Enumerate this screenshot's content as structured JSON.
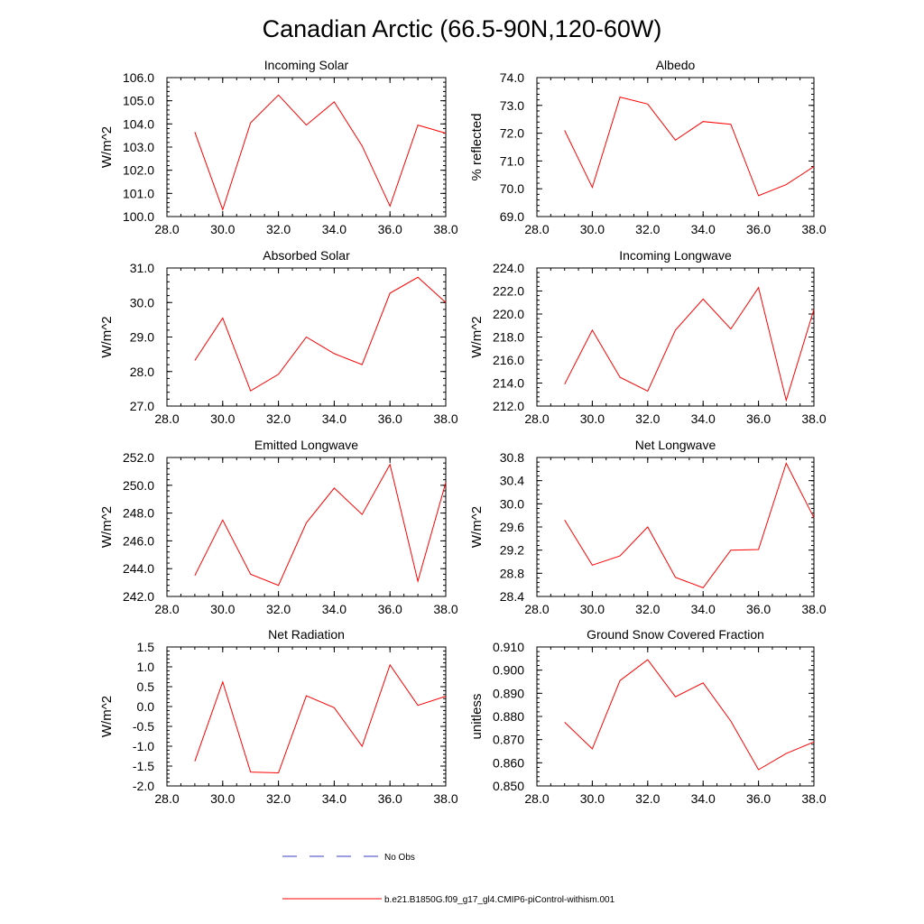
{
  "figure_title": "Canadian Arctic (66.5-90N,120-60W)",
  "legend": {
    "entries": [
      {
        "label": "No Obs",
        "color": "#3b3bc8",
        "dash": "dashed"
      },
      {
        "label": "b.e21.B1850G.f09_g17_gl4.CMIP6-piControl-withism.001",
        "color": "#ff0000",
        "dash": "solid"
      }
    ]
  },
  "chart_data": [
    {
      "type": "line",
      "title": "Incoming Solar",
      "xlabel": "",
      "ylabel": "W/m^2",
      "xlim": [
        28,
        38
      ],
      "ylim": [
        100,
        106
      ],
      "xticks": [
        28,
        30,
        32,
        34,
        36,
        38
      ],
      "xtick_labels": [
        "28.0",
        "30.0",
        "32.0",
        "34.0",
        "36.0",
        "38.0"
      ],
      "yticks": [
        100,
        101,
        102,
        103,
        104,
        105,
        106
      ],
      "ytick_labels": [
        "100.0",
        "101.0",
        "102.0",
        "103.0",
        "104.0",
        "105.0",
        "106.0"
      ],
      "series": [
        {
          "name": "b.e21.B1850G.f09_g17_gl4.CMIP6-piControl-withism.001",
          "color": "#ff0000",
          "x": [
            29,
            30,
            31,
            32,
            33,
            34,
            35,
            36,
            37,
            38
          ],
          "y": [
            103.65,
            100.3,
            104.05,
            105.25,
            103.95,
            104.95,
            103.05,
            100.45,
            103.95,
            103.6
          ]
        }
      ]
    },
    {
      "type": "line",
      "title": "Albedo",
      "xlabel": "",
      "ylabel": "% reflected",
      "xlim": [
        28,
        38
      ],
      "ylim": [
        69,
        74
      ],
      "xticks": [
        28,
        30,
        32,
        34,
        36,
        38
      ],
      "xtick_labels": [
        "28.0",
        "30.0",
        "32.0",
        "34.0",
        "36.0",
        "38.0"
      ],
      "yticks": [
        69,
        70,
        71,
        72,
        73,
        74
      ],
      "ytick_labels": [
        "69.0",
        "70.0",
        "71.0",
        "72.0",
        "73.0",
        "74.0"
      ],
      "series": [
        {
          "name": "b.e21.B1850G.f09_g17_gl4.CMIP6-piControl-withism.001",
          "color": "#ff0000",
          "x": [
            29,
            30,
            31,
            32,
            33,
            34,
            35,
            36,
            37,
            38
          ],
          "y": [
            72.1,
            70.05,
            73.3,
            73.05,
            71.75,
            72.42,
            72.32,
            69.75,
            70.15,
            70.8
          ]
        }
      ]
    },
    {
      "type": "line",
      "title": "Absorbed Solar",
      "xlabel": "",
      "ylabel": "W/m^2",
      "xlim": [
        28,
        38
      ],
      "ylim": [
        27,
        31
      ],
      "xticks": [
        28,
        30,
        32,
        34,
        36,
        38
      ],
      "xtick_labels": [
        "28.0",
        "30.0",
        "32.0",
        "34.0",
        "36.0",
        "38.0"
      ],
      "yticks": [
        27,
        28,
        29,
        30,
        31
      ],
      "ytick_labels": [
        "27.0",
        "28.0",
        "29.0",
        "30.0",
        "31.0"
      ],
      "series": [
        {
          "name": "b.e21.B1850G.f09_g17_gl4.CMIP6-piControl-withism.001",
          "color": "#ff0000",
          "x": [
            29,
            30,
            31,
            32,
            33,
            34,
            35,
            36,
            37,
            38
          ],
          "y": [
            28.32,
            29.55,
            27.44,
            27.92,
            29.0,
            28.52,
            28.2,
            30.27,
            30.73,
            30.0
          ]
        }
      ]
    },
    {
      "type": "line",
      "title": "Incoming Longwave",
      "xlabel": "",
      "ylabel": "W/m^2",
      "xlim": [
        28,
        38
      ],
      "ylim": [
        212,
        224
      ],
      "xticks": [
        28,
        30,
        32,
        34,
        36,
        38
      ],
      "xtick_labels": [
        "28.0",
        "30.0",
        "32.0",
        "34.0",
        "36.0",
        "38.0"
      ],
      "yticks": [
        212,
        214,
        216,
        218,
        220,
        222,
        224
      ],
      "ytick_labels": [
        "212.0",
        "214.0",
        "216.0",
        "218.0",
        "220.0",
        "222.0",
        "224.0"
      ],
      "series": [
        {
          "name": "b.e21.B1850G.f09_g17_gl4.CMIP6-piControl-withism.001",
          "color": "#ff0000",
          "x": [
            29,
            30,
            31,
            32,
            33,
            34,
            35,
            36,
            37,
            38
          ],
          "y": [
            213.9,
            218.6,
            214.5,
            213.3,
            218.6,
            221.3,
            218.7,
            222.3,
            212.5,
            220.4
          ]
        }
      ]
    },
    {
      "type": "line",
      "title": "Emitted Longwave",
      "xlabel": "",
      "ylabel": "W/m^2",
      "xlim": [
        28,
        38
      ],
      "ylim": [
        242,
        252
      ],
      "xticks": [
        28,
        30,
        32,
        34,
        36,
        38
      ],
      "xtick_labels": [
        "28.0",
        "30.0",
        "32.0",
        "34.0",
        "36.0",
        "38.0"
      ],
      "yticks": [
        242,
        244,
        246,
        248,
        250,
        252
      ],
      "ytick_labels": [
        "242.0",
        "244.0",
        "246.0",
        "248.0",
        "250.0",
        "252.0"
      ],
      "series": [
        {
          "name": "b.e21.B1850G.f09_g17_gl4.CMIP6-piControl-withism.001",
          "color": "#ff0000",
          "x": [
            29,
            30,
            31,
            32,
            33,
            34,
            35,
            36,
            37,
            38
          ],
          "y": [
            243.5,
            247.5,
            243.6,
            242.8,
            247.3,
            249.8,
            247.9,
            251.5,
            243.1,
            250.2
          ]
        }
      ]
    },
    {
      "type": "line",
      "title": "Net Longwave",
      "xlabel": "",
      "ylabel": "W/m^2",
      "xlim": [
        28,
        38
      ],
      "ylim": [
        28.4,
        30.8
      ],
      "xticks": [
        28,
        30,
        32,
        34,
        36,
        38
      ],
      "xtick_labels": [
        "28.0",
        "30.0",
        "32.0",
        "34.0",
        "36.0",
        "38.0"
      ],
      "yticks": [
        28.4,
        28.8,
        29.2,
        29.6,
        30.0,
        30.4,
        30.8
      ],
      "ytick_labels": [
        "28.4",
        "28.8",
        "29.2",
        "29.6",
        "30.0",
        "30.4",
        "30.8"
      ],
      "series": [
        {
          "name": "b.e21.B1850G.f09_g17_gl4.CMIP6-piControl-withism.001",
          "color": "#ff0000",
          "x": [
            29,
            30,
            31,
            32,
            33,
            34,
            35,
            36,
            37,
            38
          ],
          "y": [
            29.72,
            28.94,
            29.1,
            29.6,
            28.73,
            28.55,
            29.2,
            29.21,
            30.7,
            29.76
          ]
        }
      ]
    },
    {
      "type": "line",
      "title": "Net Radiation",
      "xlabel": "",
      "ylabel": "W/m^2",
      "xlim": [
        28,
        38
      ],
      "ylim": [
        -2.0,
        1.5
      ],
      "xticks": [
        28,
        30,
        32,
        34,
        36,
        38
      ],
      "xtick_labels": [
        "28.0",
        "30.0",
        "32.0",
        "34.0",
        "36.0",
        "38.0"
      ],
      "yticks": [
        -2.0,
        -1.5,
        -1.0,
        -0.5,
        0.0,
        0.5,
        1.0,
        1.5
      ],
      "ytick_labels": [
        "-2.0",
        "-1.5",
        "-1.0",
        "-0.5",
        "0.0",
        "0.5",
        "1.0",
        "1.5"
      ],
      "series": [
        {
          "name": "b.e21.B1850G.f09_g17_gl4.CMIP6-piControl-withism.001",
          "color": "#ff0000",
          "x": [
            29,
            30,
            31,
            32,
            33,
            34,
            35,
            36,
            37,
            38
          ],
          "y": [
            -1.38,
            0.62,
            -1.65,
            -1.67,
            0.27,
            -0.03,
            -1.0,
            1.05,
            0.03,
            0.26
          ]
        }
      ]
    },
    {
      "type": "line",
      "title": "Ground Snow Covered Fraction",
      "xlabel": "",
      "ylabel": "unitless",
      "xlim": [
        28,
        38
      ],
      "ylim": [
        0.85,
        0.91
      ],
      "xticks": [
        28,
        30,
        32,
        34,
        36,
        38
      ],
      "xtick_labels": [
        "28.0",
        "30.0",
        "32.0",
        "34.0",
        "36.0",
        "38.0"
      ],
      "yticks": [
        0.85,
        0.86,
        0.87,
        0.88,
        0.89,
        0.9,
        0.91
      ],
      "ytick_labels": [
        "0.850",
        "0.860",
        "0.870",
        "0.880",
        "0.890",
        "0.900",
        "0.910"
      ],
      "series": [
        {
          "name": "b.e21.B1850G.f09_g17_gl4.CMIP6-piControl-withism.001",
          "color": "#ff0000",
          "x": [
            29,
            30,
            31,
            32,
            33,
            34,
            35,
            36,
            37,
            38
          ],
          "y": [
            0.8775,
            0.866,
            0.8955,
            0.9045,
            0.8885,
            0.8945,
            0.878,
            0.857,
            0.864,
            0.869
          ]
        }
      ]
    }
  ]
}
